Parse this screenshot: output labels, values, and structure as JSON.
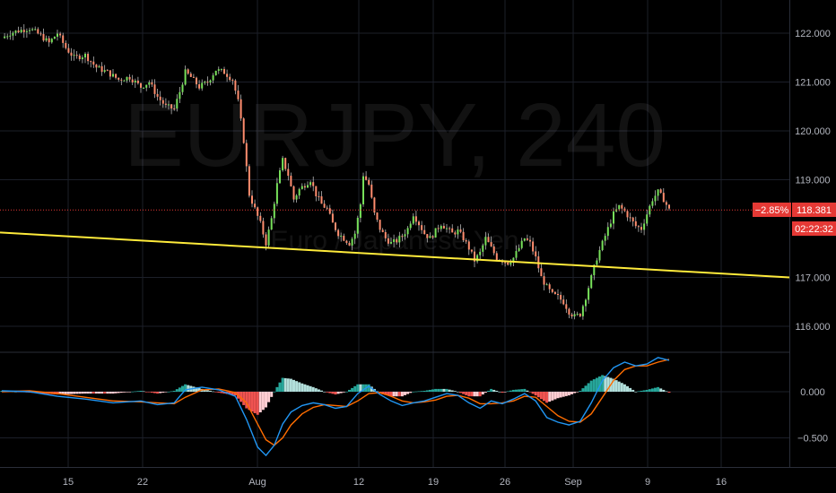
{
  "chart_data": [
    {
      "type": "candlestick",
      "symbol": "EURJPY",
      "interval": "240",
      "description": "Euro / Japanese Yen",
      "x_tick_labels": [
        "15",
        "22",
        "Aug",
        "12",
        "19",
        "26",
        "Sep",
        "9",
        "16"
      ],
      "y_tick_labels": [
        "122.000",
        "121.000",
        "120.000",
        "119.000",
        "117.000",
        "116.000"
      ],
      "ylim": [
        115.6,
        122.6
      ],
      "grid": true,
      "trendline": {
        "color": "#ffeb3b",
        "start": {
          "x": "start",
          "y": 117.92
        },
        "end": {
          "x": "16+",
          "y": 117.0
        }
      },
      "last_price": {
        "value": "118.381",
        "change": "−2.85%",
        "countdown": "02:22:32",
        "price": 118.381
      },
      "close_path": [
        {
          "x": 0,
          "y": 121.9
        },
        {
          "x": 3,
          "y": 122.0
        },
        {
          "x": 6,
          "y": 122.05
        },
        {
          "x": 10,
          "y": 122.1
        },
        {
          "x": 14,
          "y": 121.95
        },
        {
          "x": 17,
          "y": 121.8
        },
        {
          "x": 20,
          "y": 122.0
        },
        {
          "x": 23,
          "y": 121.7
        },
        {
          "x": 26,
          "y": 121.5
        },
        {
          "x": 30,
          "y": 121.55
        },
        {
          "x": 34,
          "y": 121.3
        },
        {
          "x": 38,
          "y": 121.2
        },
        {
          "x": 42,
          "y": 121.05
        },
        {
          "x": 46,
          "y": 121.1
        },
        {
          "x": 50,
          "y": 120.9
        },
        {
          "x": 53,
          "y": 121.0
        },
        {
          "x": 56,
          "y": 120.7
        },
        {
          "x": 59,
          "y": 120.5
        },
        {
          "x": 62,
          "y": 120.45
        },
        {
          "x": 64,
          "y": 120.8
        },
        {
          "x": 66,
          "y": 121.2
        },
        {
          "x": 68,
          "y": 121.1
        },
        {
          "x": 71,
          "y": 120.9
        },
        {
          "x": 74,
          "y": 121.0
        },
        {
          "x": 77,
          "y": 121.25
        },
        {
          "x": 80,
          "y": 121.2
        },
        {
          "x": 83,
          "y": 121.05
        },
        {
          "x": 85,
          "y": 120.6
        },
        {
          "x": 87,
          "y": 119.8
        },
        {
          "x": 89,
          "y": 118.7
        },
        {
          "x": 91,
          "y": 118.4
        },
        {
          "x": 93,
          "y": 118.1
        },
        {
          "x": 95,
          "y": 117.7
        },
        {
          "x": 97,
          "y": 118.2
        },
        {
          "x": 99,
          "y": 118.9
        },
        {
          "x": 101,
          "y": 119.4
        },
        {
          "x": 103,
          "y": 119.1
        },
        {
          "x": 105,
          "y": 118.6
        },
        {
          "x": 107,
          "y": 118.8
        },
        {
          "x": 109,
          "y": 118.9
        },
        {
          "x": 111,
          "y": 119.0
        },
        {
          "x": 113,
          "y": 118.7
        },
        {
          "x": 115,
          "y": 118.5
        },
        {
          "x": 117,
          "y": 118.4
        },
        {
          "x": 119,
          "y": 118.1
        },
        {
          "x": 121,
          "y": 117.9
        },
        {
          "x": 123,
          "y": 117.8
        },
        {
          "x": 125,
          "y": 117.7
        },
        {
          "x": 127,
          "y": 117.9
        },
        {
          "x": 129,
          "y": 118.5
        },
        {
          "x": 130,
          "y": 119.1
        },
        {
          "x": 132,
          "y": 118.9
        },
        {
          "x": 134,
          "y": 118.3
        },
        {
          "x": 136,
          "y": 118.0
        },
        {
          "x": 138,
          "y": 117.8
        },
        {
          "x": 140,
          "y": 117.7
        },
        {
          "x": 142,
          "y": 117.75
        },
        {
          "x": 144,
          "y": 117.85
        },
        {
          "x": 146,
          "y": 118.0
        },
        {
          "x": 148,
          "y": 118.3
        },
        {
          "x": 150,
          "y": 118.1
        },
        {
          "x": 152,
          "y": 117.9
        },
        {
          "x": 154,
          "y": 117.8
        },
        {
          "x": 156,
          "y": 117.95
        },
        {
          "x": 158,
          "y": 118.1
        },
        {
          "x": 160,
          "y": 118.0
        },
        {
          "x": 162,
          "y": 117.9
        },
        {
          "x": 164,
          "y": 117.95
        },
        {
          "x": 166,
          "y": 117.8
        },
        {
          "x": 168,
          "y": 117.6
        },
        {
          "x": 170,
          "y": 117.35
        },
        {
          "x": 172,
          "y": 117.5
        },
        {
          "x": 174,
          "y": 117.8
        },
        {
          "x": 176,
          "y": 117.6
        },
        {
          "x": 178,
          "y": 117.4
        },
        {
          "x": 180,
          "y": 117.35
        },
        {
          "x": 182,
          "y": 117.3
        },
        {
          "x": 184,
          "y": 117.4
        },
        {
          "x": 186,
          "y": 117.6
        },
        {
          "x": 188,
          "y": 117.8
        },
        {
          "x": 190,
          "y": 117.7
        },
        {
          "x": 192,
          "y": 117.4
        },
        {
          "x": 194,
          "y": 117.0
        },
        {
          "x": 196,
          "y": 116.8
        },
        {
          "x": 198,
          "y": 116.65
        },
        {
          "x": 200,
          "y": 116.6
        },
        {
          "x": 202,
          "y": 116.5
        },
        {
          "x": 204,
          "y": 116.3
        },
        {
          "x": 206,
          "y": 116.2
        },
        {
          "x": 208,
          "y": 116.25
        },
        {
          "x": 210,
          "y": 116.6
        },
        {
          "x": 212,
          "y": 117.0
        },
        {
          "x": 214,
          "y": 117.4
        },
        {
          "x": 216,
          "y": 117.7
        },
        {
          "x": 218,
          "y": 118.0
        },
        {
          "x": 220,
          "y": 118.3
        },
        {
          "x": 222,
          "y": 118.45
        },
        {
          "x": 224,
          "y": 118.35
        },
        {
          "x": 226,
          "y": 118.2
        },
        {
          "x": 228,
          "y": 118.05
        },
        {
          "x": 230,
          "y": 118.0
        },
        {
          "x": 232,
          "y": 118.3
        },
        {
          "x": 234,
          "y": 118.6
        },
        {
          "x": 236,
          "y": 118.75
        },
        {
          "x": 238,
          "y": 118.6
        },
        {
          "x": 240,
          "y": 118.38
        }
      ]
    },
    {
      "type": "macd",
      "y_tick_labels": [
        "0.000",
        "−0.500"
      ],
      "ylim": [
        -0.72,
        0.42
      ],
      "macd_color": "#2196f3",
      "signal_color": "#ff6d00",
      "hist_up_color": "#26a69a",
      "hist_down_color": "#ef5350",
      "macd": [
        {
          "x": 0,
          "y": 0.01
        },
        {
          "x": 10,
          "y": 0.0
        },
        {
          "x": 20,
          "y": -0.05
        },
        {
          "x": 30,
          "y": -0.08
        },
        {
          "x": 40,
          "y": -0.12
        },
        {
          "x": 50,
          "y": -0.1
        },
        {
          "x": 56,
          "y": -0.14
        },
        {
          "x": 62,
          "y": -0.12
        },
        {
          "x": 66,
          "y": 0.02
        },
        {
          "x": 72,
          "y": 0.05
        },
        {
          "x": 78,
          "y": 0.02
        },
        {
          "x": 84,
          "y": -0.05
        },
        {
          "x": 88,
          "y": -0.3
        },
        {
          "x": 92,
          "y": -0.6
        },
        {
          "x": 95,
          "y": -0.69
        },
        {
          "x": 98,
          "y": -0.58
        },
        {
          "x": 101,
          "y": -0.35
        },
        {
          "x": 104,
          "y": -0.22
        },
        {
          "x": 108,
          "y": -0.15
        },
        {
          "x": 112,
          "y": -0.12
        },
        {
          "x": 116,
          "y": -0.14
        },
        {
          "x": 120,
          "y": -0.18
        },
        {
          "x": 124,
          "y": -0.16
        },
        {
          "x": 128,
          "y": -0.02
        },
        {
          "x": 132,
          "y": 0.06
        },
        {
          "x": 136,
          "y": -0.03
        },
        {
          "x": 140,
          "y": -0.1
        },
        {
          "x": 144,
          "y": -0.15
        },
        {
          "x": 148,
          "y": -0.12
        },
        {
          "x": 152,
          "y": -0.1
        },
        {
          "x": 156,
          "y": -0.06
        },
        {
          "x": 160,
          "y": -0.02
        },
        {
          "x": 164,
          "y": -0.04
        },
        {
          "x": 168,
          "y": -0.12
        },
        {
          "x": 172,
          "y": -0.18
        },
        {
          "x": 176,
          "y": -0.1
        },
        {
          "x": 180,
          "y": -0.13
        },
        {
          "x": 184,
          "y": -0.08
        },
        {
          "x": 188,
          "y": -0.02
        },
        {
          "x": 192,
          "y": -0.1
        },
        {
          "x": 196,
          "y": -0.28
        },
        {
          "x": 200,
          "y": -0.33
        },
        {
          "x": 204,
          "y": -0.36
        },
        {
          "x": 208,
          "y": -0.32
        },
        {
          "x": 212,
          "y": -0.12
        },
        {
          "x": 216,
          "y": 0.12
        },
        {
          "x": 220,
          "y": 0.26
        },
        {
          "x": 224,
          "y": 0.32
        },
        {
          "x": 228,
          "y": 0.28
        },
        {
          "x": 232,
          "y": 0.3
        },
        {
          "x": 236,
          "y": 0.37
        },
        {
          "x": 240,
          "y": 0.34
        }
      ],
      "signal": [
        {
          "x": 0,
          "y": 0.0
        },
        {
          "x": 10,
          "y": 0.01
        },
        {
          "x": 20,
          "y": -0.02
        },
        {
          "x": 30,
          "y": -0.06
        },
        {
          "x": 40,
          "y": -0.1
        },
        {
          "x": 50,
          "y": -0.11
        },
        {
          "x": 56,
          "y": -0.12
        },
        {
          "x": 62,
          "y": -0.13
        },
        {
          "x": 66,
          "y": -0.06
        },
        {
          "x": 72,
          "y": 0.02
        },
        {
          "x": 78,
          "y": 0.03
        },
        {
          "x": 84,
          "y": -0.01
        },
        {
          "x": 88,
          "y": -0.12
        },
        {
          "x": 92,
          "y": -0.35
        },
        {
          "x": 95,
          "y": -0.52
        },
        {
          "x": 98,
          "y": -0.58
        },
        {
          "x": 101,
          "y": -0.5
        },
        {
          "x": 104,
          "y": -0.36
        },
        {
          "x": 108,
          "y": -0.24
        },
        {
          "x": 112,
          "y": -0.17
        },
        {
          "x": 116,
          "y": -0.14
        },
        {
          "x": 120,
          "y": -0.15
        },
        {
          "x": 124,
          "y": -0.16
        },
        {
          "x": 128,
          "y": -0.1
        },
        {
          "x": 132,
          "y": -0.02
        },
        {
          "x": 136,
          "y": -0.01
        },
        {
          "x": 140,
          "y": -0.05
        },
        {
          "x": 144,
          "y": -0.1
        },
        {
          "x": 148,
          "y": -0.12
        },
        {
          "x": 152,
          "y": -0.11
        },
        {
          "x": 156,
          "y": -0.09
        },
        {
          "x": 160,
          "y": -0.05
        },
        {
          "x": 164,
          "y": -0.04
        },
        {
          "x": 168,
          "y": -0.07
        },
        {
          "x": 172,
          "y": -0.13
        },
        {
          "x": 176,
          "y": -0.13
        },
        {
          "x": 180,
          "y": -0.12
        },
        {
          "x": 184,
          "y": -0.1
        },
        {
          "x": 188,
          "y": -0.05
        },
        {
          "x": 192,
          "y": -0.06
        },
        {
          "x": 196,
          "y": -0.16
        },
        {
          "x": 200,
          "y": -0.26
        },
        {
          "x": 204,
          "y": -0.32
        },
        {
          "x": 208,
          "y": -0.33
        },
        {
          "x": 212,
          "y": -0.24
        },
        {
          "x": 216,
          "y": -0.06
        },
        {
          "x": 220,
          "y": 0.12
        },
        {
          "x": 224,
          "y": 0.24
        },
        {
          "x": 228,
          "y": 0.28
        },
        {
          "x": 232,
          "y": 0.28
        },
        {
          "x": 236,
          "y": 0.32
        },
        {
          "x": 240,
          "y": 0.35
        }
      ]
    }
  ]
}
